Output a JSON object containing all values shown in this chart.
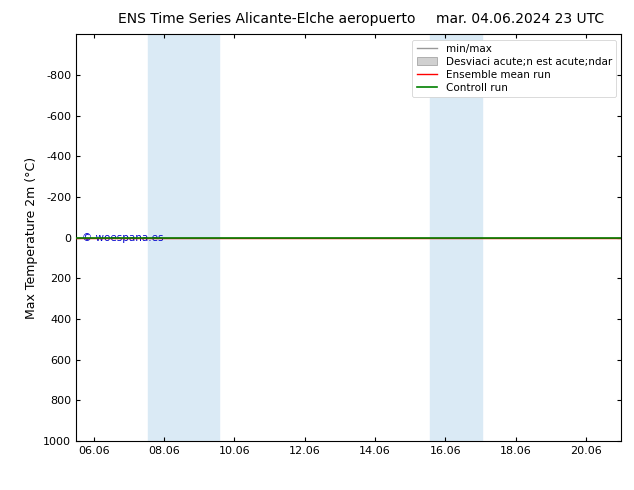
{
  "title_left": "ENS Time Series Alicante-Elche aeropuerto",
  "title_right": "mar. 04.06.2024 23 UTC",
  "ylabel": "Max Temperature 2m (°C)",
  "ylim_bottom": -1000,
  "ylim_top": 1000,
  "yticks": [
    -800,
    -600,
    -400,
    -200,
    0,
    200,
    400,
    600,
    800,
    1000
  ],
  "xtick_labels": [
    "06.06",
    "08.06",
    "10.06",
    "12.06",
    "14.06",
    "16.06",
    "18.06",
    "20.06"
  ],
  "xtick_positions": [
    0,
    2,
    4,
    6,
    8,
    10,
    12,
    14
  ],
  "xlim": [
    -0.5,
    15.0
  ],
  "shaded_bands": [
    [
      1.5,
      2.0
    ],
    [
      2.0,
      3.5
    ],
    [
      9.5,
      10.0
    ],
    [
      10.0,
      11.0
    ]
  ],
  "band_color": "#daeaf5",
  "green_color": "#008000",
  "red_color": "#ff0000",
  "gray_line_color": "#999999",
  "light_gray_color": "#d0d0d0",
  "watermark": "© woespana.es",
  "watermark_color": "#0000cc",
  "legend_labels": [
    "min/max",
    "Desviaci acute;n est acute;ndar",
    "Ensemble mean run",
    "Controll run"
  ],
  "background_color": "#ffffff",
  "title_fontsize": 10,
  "axis_label_fontsize": 9,
  "tick_fontsize": 8,
  "legend_fontsize": 7.5
}
